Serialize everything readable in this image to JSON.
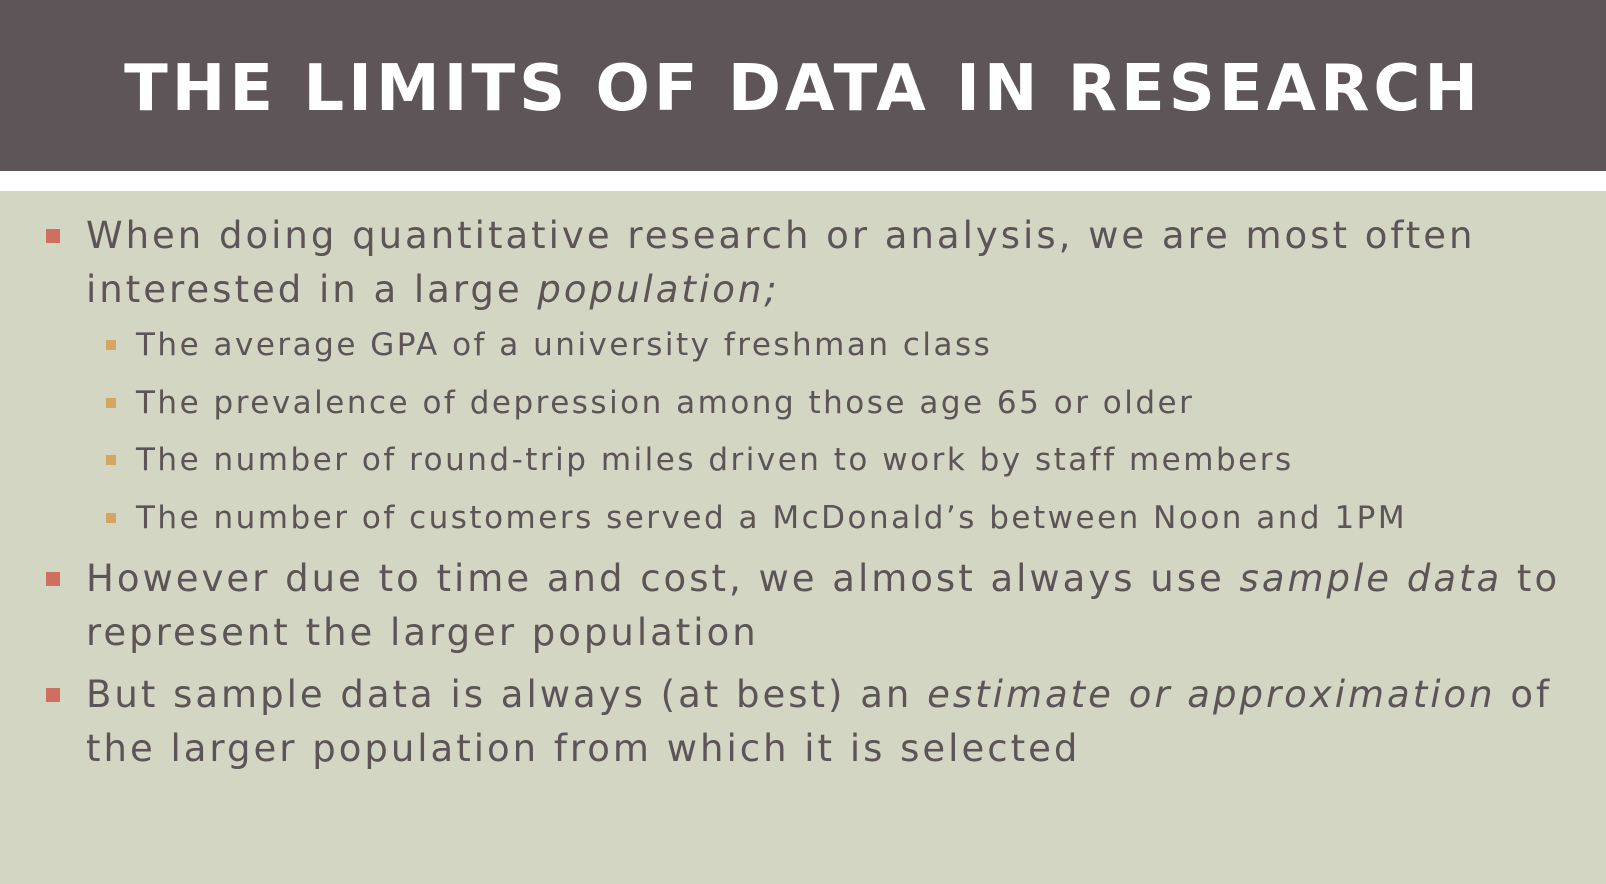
{
  "slide": {
    "title": "THE LIMITS OF DATA IN RESEARCH",
    "bullets": [
      {
        "before": "When doing quantitative research or analysis, we are most often interested in a large ",
        "italic": "population;",
        "after": "",
        "sub": [
          "The average GPA of a university freshman class",
          "The prevalence of depression among those age 65 or older",
          "The number of round-trip miles driven to work by staff members",
          "The number of customers served a McDonald’s between Noon and 1PM"
        ]
      },
      {
        "before": "However due to time and cost, we almost always use ",
        "italic": "sample data",
        "after": " to represent the larger population"
      },
      {
        "before": "But sample data is always (at best) an ",
        "italic": "estimate or approximation",
        "after": " of the larger population from which it is selected"
      }
    ]
  },
  "colors": {
    "title_band": "#5e5558",
    "background": "#d3d6c2",
    "text": "#5c5456",
    "bullet_level1": "#cf6f5f",
    "bullet_level2": "#d6a560"
  }
}
